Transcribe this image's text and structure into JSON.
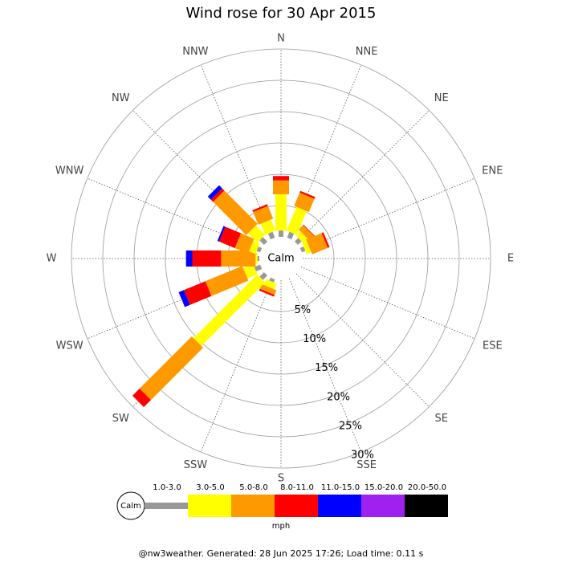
{
  "chart_data": {
    "type": "wind-rose",
    "title": "Wind rose for 30 Apr 2015",
    "categories": [
      "N",
      "NNE",
      "NE",
      "ENE",
      "E",
      "ESE",
      "SE",
      "SSE",
      "S",
      "SSW",
      "SW",
      "WSW",
      "W",
      "WNW",
      "NW",
      "NNW"
    ],
    "calm_label": "Calm",
    "legend_title": "mph",
    "footer": "@nw3weather. Generated: 28 Jun 2025 17:26; Load time: 0.11 s",
    "rlim": [
      0,
      30
    ],
    "rticks": [
      {
        "value": 5,
        "label": "5%"
      },
      {
        "value": 10,
        "label": "10%"
      },
      {
        "value": 15,
        "label": "15%"
      },
      {
        "value": 20,
        "label": "20%"
      },
      {
        "value": 25,
        "label": "25%"
      },
      {
        "value": 30,
        "label": "30%"
      }
    ],
    "grid": true,
    "series": [
      {
        "name": "1.0-3.0",
        "color": "#999999",
        "values": [
          1,
          1,
          0.8,
          0.6,
          0,
          0,
          0,
          0,
          0,
          0.5,
          1,
          1,
          0.3,
          0.6,
          1,
          1
        ]
      },
      {
        "name": "3.0-5.0",
        "color": "#ffff00",
        "values": [
          5.8,
          4.1,
          1.0,
          0.8,
          0,
          0,
          0,
          0,
          0,
          1,
          14.4,
          1.7,
          0.3,
          1.1,
          2.1,
          1.9
        ]
      },
      {
        "name": "5.0-8.0",
        "color": "#ff9900",
        "values": [
          2.2,
          2.3,
          1.0,
          2.7,
          0,
          0,
          0,
          0,
          0,
          0.8,
          11.8,
          6.4,
          5.5,
          2.3,
          7.5,
          2.2
        ]
      },
      {
        "name": "8.0-11.0",
        "color": "#ff0000",
        "values": [
          0.7,
          0.3,
          0.1,
          0.3,
          0,
          0,
          0,
          0,
          0,
          0.3,
          1.6,
          3.7,
          4.6,
          2.7,
          0.5,
          0.3
        ]
      },
      {
        "name": "11.0-15.0",
        "color": "#0000ff",
        "values": [
          0,
          0,
          0,
          0,
          0,
          0,
          0,
          0,
          0,
          0,
          0,
          0.9,
          1.0,
          0.3,
          0.7,
          0
        ]
      },
      {
        "name": "15.0-20.0",
        "color": "#a020f0",
        "values": [
          0,
          0,
          0,
          0,
          0,
          0,
          0,
          0,
          0,
          0,
          0,
          0,
          0,
          0,
          0,
          0
        ]
      },
      {
        "name": "20.0-50.0",
        "color": "#000000",
        "values": [
          0,
          0,
          0,
          0,
          0,
          0,
          0,
          0,
          0,
          0,
          0,
          0,
          0,
          0,
          0,
          0
        ]
      }
    ]
  }
}
